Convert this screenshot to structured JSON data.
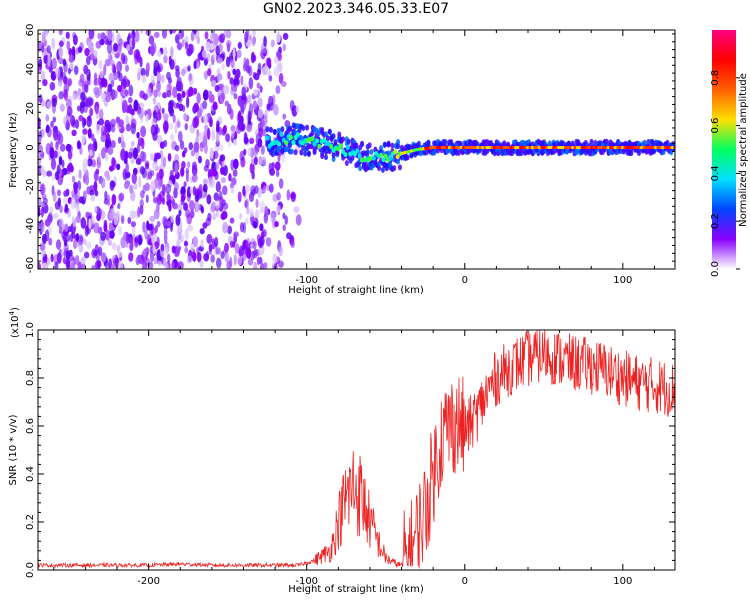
{
  "title": "GN02.2023.346.05.33.E07",
  "chart_data": [
    {
      "type": "heatmap",
      "xlabel": "Height of straight line (km)",
      "ylabel": "Frequency (Hz)",
      "xlim": [
        -270,
        133
      ],
      "ylim": [
        -62,
        60
      ],
      "x_ticks": [
        -200,
        -100,
        0,
        100
      ],
      "x_tick_labels": [
        "-200",
        "-100",
        "0",
        "100"
      ],
      "y_ticks": [
        -60,
        -40,
        -20,
        0,
        20,
        40,
        60
      ],
      "y_tick_labels": [
        "-60",
        "-40",
        "-20",
        "0",
        "20",
        "40",
        "60"
      ],
      "noise_region_x": [
        -270,
        -105
      ],
      "signal_ridge": {
        "x": [
          -125,
          -110,
          -95,
          -80,
          -70,
          -60,
          -50,
          -40,
          -30,
          -20,
          0,
          50,
          100,
          133
        ],
        "y": [
          3,
          5,
          3,
          0,
          -3,
          -5,
          -5,
          -3,
          -1,
          0,
          0,
          0,
          0,
          0
        ]
      },
      "colorbar": {
        "label": "Normalized spectral amplitude",
        "range": [
          0,
          1
        ],
        "ticks": [
          0.0,
          0.2,
          0.4,
          0.6,
          0.8
        ],
        "tick_labels": [
          "0.0",
          "0.2",
          "0.4",
          "0.6",
          "0.8"
        ],
        "colors": [
          "#ffffff",
          "#8800ff",
          "#0044ff",
          "#00e0ff",
          "#00ff60",
          "#ffe000",
          "#ff6000",
          "#ff0000",
          "#ff0080"
        ]
      },
      "grid": false
    },
    {
      "type": "line",
      "xlabel": "Height of straight line (km)",
      "ylabel": "SNR (10 * v/v)",
      "y_scale_note": "(x10",
      "y_scale_exp": "4",
      "y_scale_close": ")",
      "xlim": [
        -270,
        133
      ],
      "ylim": [
        0,
        1.0
      ],
      "x_ticks": [
        -200,
        -100,
        0,
        100
      ],
      "x_tick_labels": [
        "-200",
        "-100",
        "0",
        "100"
      ],
      "y_ticks": [
        0.0,
        0.2,
        0.4,
        0.6,
        0.8,
        1.0
      ],
      "y_tick_labels": [
        "0.0",
        "0.2",
        "0.4",
        "0.6",
        "0.8",
        "1.0"
      ],
      "series": [
        {
          "color": "#ee2222",
          "x": [
            -270,
            -250,
            -230,
            -200,
            -180,
            -160,
            -140,
            -120,
            -105,
            -95,
            -85,
            -80,
            -75,
            -70,
            -65,
            -60,
            -55,
            -50,
            -45,
            -40,
            -35,
            -30,
            -25,
            -20,
            -15,
            -10,
            -5,
            0,
            5,
            10,
            15,
            20,
            30,
            40,
            50,
            60,
            70,
            80,
            90,
            100,
            110,
            120,
            133
          ],
          "y": [
            0.02,
            0.02,
            0.02,
            0.02,
            0.025,
            0.02,
            0.02,
            0.02,
            0.02,
            0.04,
            0.08,
            0.2,
            0.3,
            0.35,
            0.3,
            0.2,
            0.12,
            0.05,
            0.03,
            0.02,
            0.06,
            0.15,
            0.25,
            0.4,
            0.55,
            0.6,
            0.62,
            0.58,
            0.62,
            0.68,
            0.75,
            0.8,
            0.85,
            0.88,
            0.9,
            0.88,
            0.86,
            0.85,
            0.83,
            0.8,
            0.78,
            0.77,
            0.75
          ]
        }
      ],
      "grid": false
    }
  ]
}
